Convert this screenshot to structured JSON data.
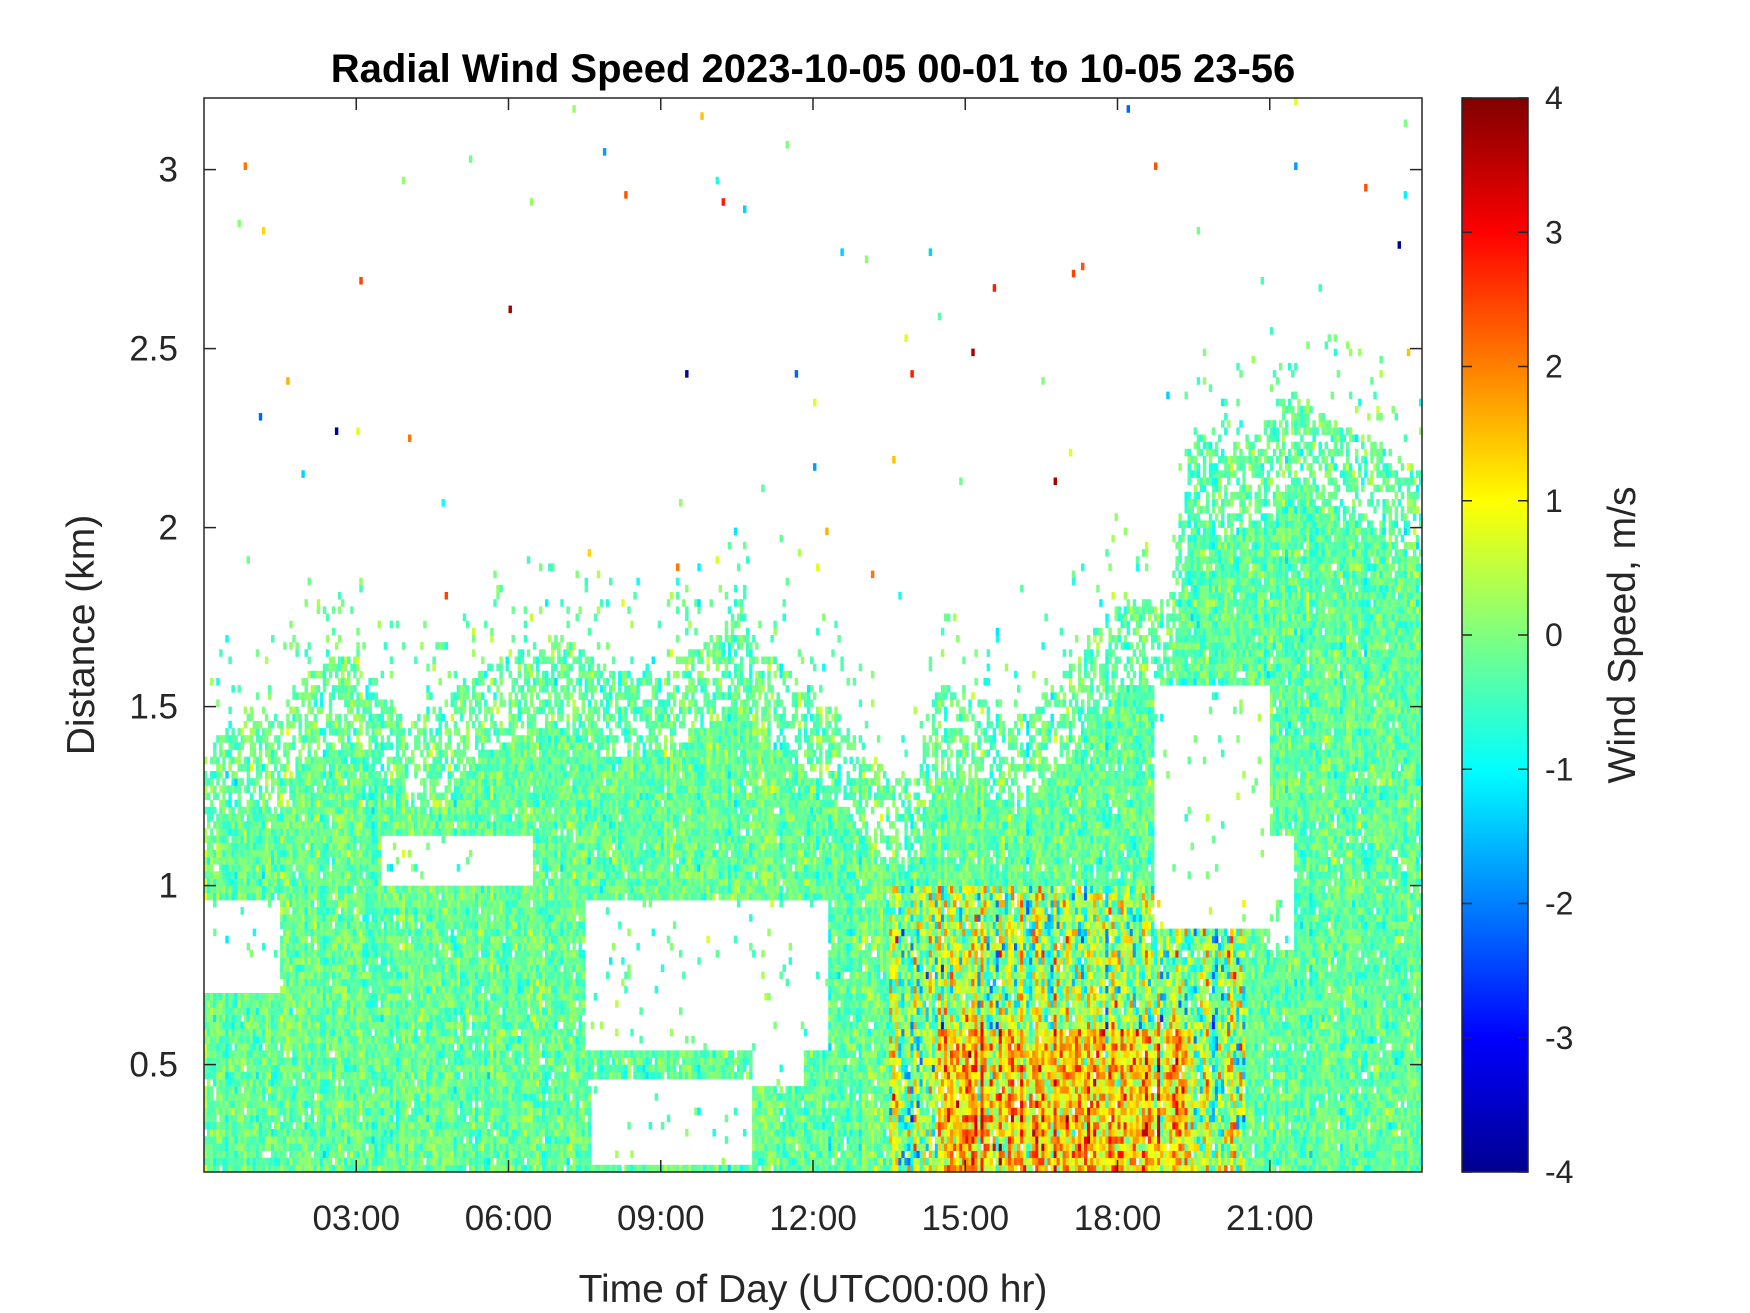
{
  "chart_data": {
    "type": "heatmap",
    "title": "Radial Wind Speed 2023-10-05 00-01 to 10-05 23-56",
    "xlabel": "Time of Day (UTC00:00 hr)",
    "ylabel": "Distance (km)",
    "xlim": [
      0,
      24
    ],
    "ylim": [
      0.2,
      3.2
    ],
    "x_ticks": [
      3,
      6,
      9,
      12,
      15,
      18,
      21
    ],
    "x_tick_labels": [
      "03:00",
      "06:00",
      "09:00",
      "12:00",
      "15:00",
      "18:00",
      "21:00"
    ],
    "y_ticks": [
      0.5,
      1,
      1.5,
      2,
      2.5,
      3
    ],
    "y_tick_labels": [
      "0.5",
      "1",
      "1.5",
      "2",
      "2.5",
      "3"
    ],
    "colorbar": {
      "label": "Wind Speed, m/s",
      "colormap": "jet",
      "range": [
        -4,
        4
      ],
      "ticks": [
        -4,
        -3,
        -2,
        -1,
        0,
        1,
        2,
        3,
        4
      ],
      "tick_labels": [
        "-4",
        "-3",
        "-2",
        "-1",
        "0",
        "1",
        "2",
        "3",
        "4"
      ]
    },
    "cloud_top_km": {
      "hours": [
        0,
        0.5,
        1,
        1.5,
        2,
        3,
        4,
        5,
        6,
        7,
        8,
        9,
        10,
        10.5,
        11,
        12,
        13,
        13.5,
        14,
        14.5,
        15,
        16,
        17,
        18,
        19,
        19.5,
        20,
        21,
        21.5,
        22,
        23,
        24
      ],
      "values": [
        1.25,
        1.35,
        1.38,
        1.35,
        1.5,
        1.55,
        1.35,
        1.45,
        1.55,
        1.6,
        1.5,
        1.5,
        1.6,
        1.7,
        1.55,
        1.45,
        1.3,
        1.2,
        1.2,
        1.45,
        1.45,
        1.35,
        1.5,
        1.7,
        1.7,
        2.2,
        2.1,
        2.2,
        2.3,
        2.2,
        2.15,
        2.05
      ]
    },
    "clear_gaps": [
      {
        "t_start": 0,
        "t_end": 1.5,
        "bottom_km": 0.7,
        "top_km": 0.95
      },
      {
        "t_start": 3.5,
        "t_end": 6.5,
        "bottom_km": 1.0,
        "top_km": 1.15
      },
      {
        "t_start": 7.5,
        "t_end": 12.3,
        "bottom_km": 0.55,
        "top_km": 0.95
      },
      {
        "t_start": 10.8,
        "t_end": 11.8,
        "bottom_km": 0.45,
        "top_km": 0.75
      },
      {
        "t_start": 7.6,
        "t_end": 10.8,
        "bottom_km": 0.22,
        "top_km": 0.45
      },
      {
        "t_start": 18.7,
        "t_end": 21.0,
        "bottom_km": 0.88,
        "top_km": 1.55
      },
      {
        "t_start": 21.0,
        "t_end": 21.5,
        "bottom_km": 0.82,
        "top_km": 1.15
      }
    ],
    "intense_regions": [
      {
        "t_start": 13.5,
        "t_end": 20.5,
        "top_km": 1.0,
        "mean_speed_mps": 0.3,
        "spread_mps": 1.8
      },
      {
        "t_start": 14.5,
        "t_end": 19.5,
        "top_km": 0.6,
        "mean_speed_mps": 1.5,
        "spread_mps": 1.6
      }
    ],
    "background_mean_mps": -0.2,
    "background_spread_mps": 0.35
  }
}
